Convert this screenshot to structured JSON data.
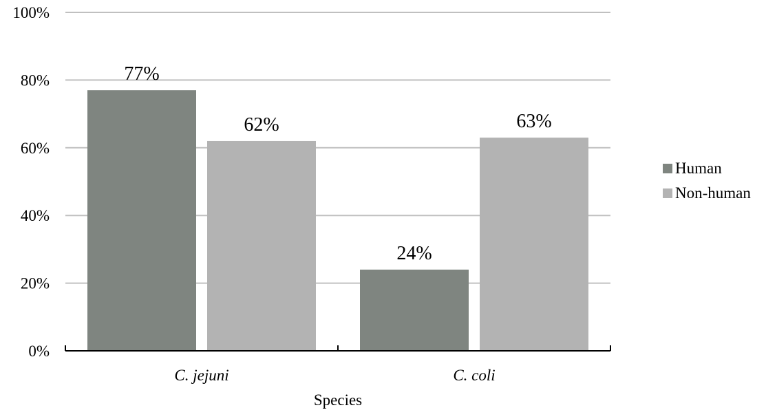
{
  "chart_data": {
    "type": "bar",
    "categories": [
      "C. jejuni",
      "C. coli"
    ],
    "series": [
      {
        "name": "Human",
        "values": [
          77,
          24
        ],
        "labels": [
          "77%",
          "24%"
        ],
        "color": "#7f8580"
      },
      {
        "name": "Non-human",
        "values": [
          62,
          63
        ],
        "labels": [
          "62%",
          "63%"
        ],
        "color": "#b3b3b3"
      }
    ],
    "title": "",
    "xlabel": "Species",
    "ylabel": "",
    "ylim": [
      0,
      100
    ],
    "yticks": [
      0,
      20,
      40,
      60,
      80,
      100
    ],
    "ytick_labels": [
      "0%",
      "20%",
      "40%",
      "60%",
      "80%",
      "100%"
    ],
    "grid": true,
    "grid_color": "#c0c0c0",
    "axis_color": "#000000",
    "legend_position": "right"
  }
}
